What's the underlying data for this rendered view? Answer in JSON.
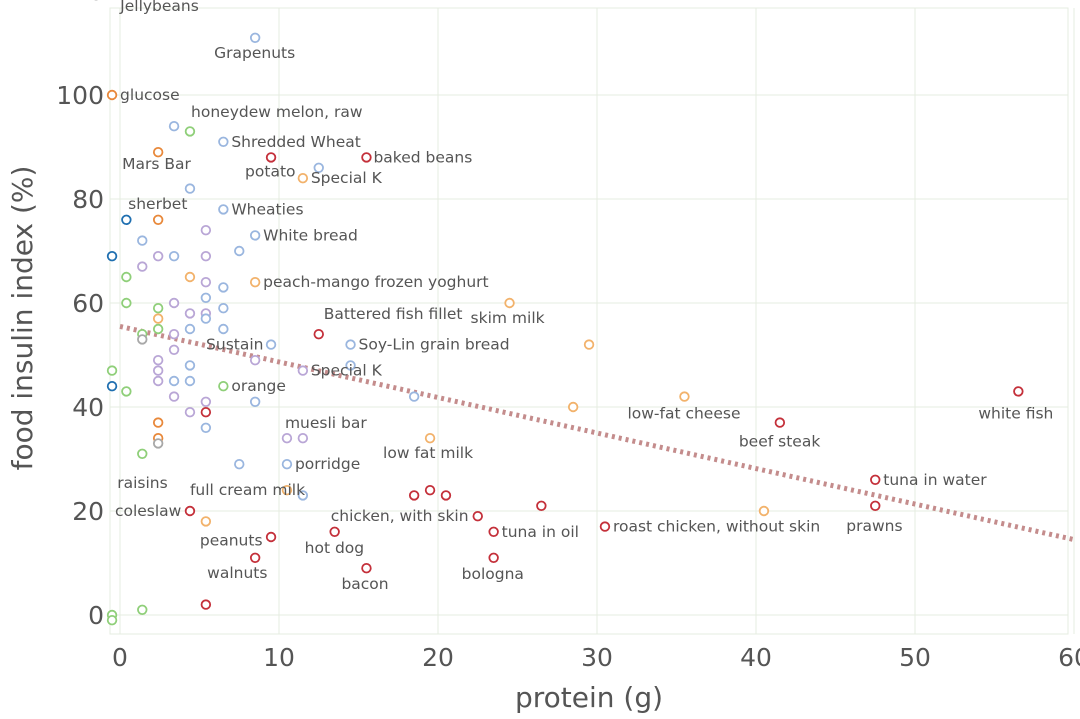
{
  "chart_data": {
    "type": "scatter",
    "xlabel": "protein (g)",
    "ylabel": "food insulin index (%)",
    "xlim": [
      0,
      60
    ],
    "ylim": [
      0,
      120
    ],
    "xticks": [
      "0",
      "10",
      "20",
      "30",
      "40",
      "50",
      "60"
    ],
    "yticks": [
      "0",
      "20",
      "40",
      "60",
      "80",
      "100",
      "120"
    ],
    "grid": true,
    "trendline": {
      "from": [
        0,
        55.5
      ],
      "to": [
        60,
        14.5
      ]
    },
    "colors": {
      "orange": "#e8883a",
      "lightorange": "#f2b26b",
      "red": "#c4303a",
      "blue": "#1f6fb0",
      "lightblue": "#9ab6df",
      "green": "#8fcf79",
      "purple": "#b9a6d6",
      "grey": "#a8a8a8"
    },
    "points": [
      {
        "x": 2.4,
        "y": 120,
        "c": "orange",
        "label": "Jellybeans"
      },
      {
        "x": 8.5,
        "y": 111,
        "c": "lightblue",
        "label": "Grapenuts"
      },
      {
        "x": -0.5,
        "y": 100,
        "c": "orange",
        "label": "glucose"
      },
      {
        "x": 3.4,
        "y": 94,
        "c": "lightblue",
        "label": "honeydew melon, raw"
      },
      {
        "x": 4.4,
        "y": 93,
        "c": "green",
        "label": ""
      },
      {
        "x": 6.5,
        "y": 91,
        "c": "lightblue",
        "label": "Shredded Wheat"
      },
      {
        "x": 2.4,
        "y": 89,
        "c": "orange",
        "label": "Mars Bar"
      },
      {
        "x": 9.5,
        "y": 88,
        "c": "red",
        "label": "potato"
      },
      {
        "x": 15.5,
        "y": 88,
        "c": "red",
        "label": "baked beans"
      },
      {
        "x": 12.5,
        "y": 86,
        "c": "lightblue",
        "label": ""
      },
      {
        "x": 11.5,
        "y": 84,
        "c": "lightorange",
        "label": "Special K"
      },
      {
        "x": 4.4,
        "y": 82,
        "c": "lightblue",
        "label": ""
      },
      {
        "x": 6.5,
        "y": 78,
        "c": "lightblue",
        "label": "Wheaties"
      },
      {
        "x": 0.4,
        "y": 76,
        "c": "blue",
        "label": ""
      },
      {
        "x": 2.4,
        "y": 76,
        "c": "orange",
        "label": "sherbet"
      },
      {
        "x": 5.4,
        "y": 74,
        "c": "purple",
        "label": ""
      },
      {
        "x": 8.5,
        "y": 73,
        "c": "lightblue",
        "label": "White bread"
      },
      {
        "x": 1.4,
        "y": 72,
        "c": "lightblue",
        "label": ""
      },
      {
        "x": 7.5,
        "y": 70,
        "c": "lightblue",
        "label": ""
      },
      {
        "x": -0.5,
        "y": 69,
        "c": "blue",
        "label": ""
      },
      {
        "x": 2.4,
        "y": 69,
        "c": "purple",
        "label": ""
      },
      {
        "x": 3.4,
        "y": 69,
        "c": "lightblue",
        "label": ""
      },
      {
        "x": 5.4,
        "y": 69,
        "c": "purple",
        "label": ""
      },
      {
        "x": 1.4,
        "y": 67,
        "c": "purple",
        "label": ""
      },
      {
        "x": 0.4,
        "y": 65,
        "c": "green",
        "label": ""
      },
      {
        "x": 4.4,
        "y": 65,
        "c": "lightorange",
        "label": ""
      },
      {
        "x": 5.4,
        "y": 64,
        "c": "purple",
        "label": ""
      },
      {
        "x": 8.5,
        "y": 64,
        "c": "lightorange",
        "label": "peach-mango frozen yoghurt"
      },
      {
        "x": 6.5,
        "y": 63,
        "c": "lightblue",
        "label": ""
      },
      {
        "x": 5.4,
        "y": 61,
        "c": "lightblue",
        "label": ""
      },
      {
        "x": 0.4,
        "y": 60,
        "c": "green",
        "label": ""
      },
      {
        "x": 3.4,
        "y": 60,
        "c": "purple",
        "label": ""
      },
      {
        "x": 24.5,
        "y": 60,
        "c": "lightorange",
        "label": "skim milk"
      },
      {
        "x": 2.4,
        "y": 59,
        "c": "green",
        "label": ""
      },
      {
        "x": 6.5,
        "y": 59,
        "c": "lightblue",
        "label": ""
      },
      {
        "x": 4.4,
        "y": 58,
        "c": "purple",
        "label": ""
      },
      {
        "x": 5.4,
        "y": 58,
        "c": "purple",
        "label": ""
      },
      {
        "x": 2.4,
        "y": 57,
        "c": "lightorange",
        "label": ""
      },
      {
        "x": 5.4,
        "y": 57,
        "c": "lightblue",
        "label": ""
      },
      {
        "x": 2.4,
        "y": 55,
        "c": "green",
        "label": ""
      },
      {
        "x": 4.4,
        "y": 55,
        "c": "lightblue",
        "label": ""
      },
      {
        "x": 6.5,
        "y": 55,
        "c": "lightblue",
        "label": ""
      },
      {
        "x": 1.4,
        "y": 54,
        "c": "green",
        "label": ""
      },
      {
        "x": 3.4,
        "y": 54,
        "c": "purple",
        "label": ""
      },
      {
        "x": 12.5,
        "y": 54,
        "c": "red",
        "label": "Battered fish fillet"
      },
      {
        "x": 1.4,
        "y": 53,
        "c": "grey",
        "label": ""
      },
      {
        "x": 9.5,
        "y": 52,
        "c": "lightblue",
        "label": "Sustain"
      },
      {
        "x": 14.5,
        "y": 52,
        "c": "lightblue",
        "label": "Soy-Lin grain bread"
      },
      {
        "x": 29.5,
        "y": 52,
        "c": "lightorange",
        "label": ""
      },
      {
        "x": 3.4,
        "y": 51,
        "c": "purple",
        "label": ""
      },
      {
        "x": 2.4,
        "y": 49,
        "c": "purple",
        "label": ""
      },
      {
        "x": 8.5,
        "y": 49,
        "c": "purple",
        "label": ""
      },
      {
        "x": 4.4,
        "y": 48,
        "c": "lightblue",
        "label": ""
      },
      {
        "x": 14.5,
        "y": 48,
        "c": "lightblue",
        "label": ""
      },
      {
        "x": -0.5,
        "y": 47,
        "c": "green",
        "label": ""
      },
      {
        "x": 2.4,
        "y": 47,
        "c": "purple",
        "label": ""
      },
      {
        "x": 11.5,
        "y": 47,
        "c": "purple",
        "label": "Special K"
      },
      {
        "x": 2.4,
        "y": 45,
        "c": "purple",
        "label": ""
      },
      {
        "x": 3.4,
        "y": 45,
        "c": "lightblue",
        "label": ""
      },
      {
        "x": 4.4,
        "y": 45,
        "c": "lightblue",
        "label": ""
      },
      {
        "x": -0.5,
        "y": 44,
        "c": "blue",
        "label": ""
      },
      {
        "x": 6.5,
        "y": 44,
        "c": "green",
        "label": "orange"
      },
      {
        "x": 0.4,
        "y": 43,
        "c": "green",
        "label": ""
      },
      {
        "x": 56.5,
        "y": 43,
        "c": "red",
        "label": "white fish"
      },
      {
        "x": 3.4,
        "y": 42,
        "c": "purple",
        "label": ""
      },
      {
        "x": 18.5,
        "y": 42,
        "c": "lightblue",
        "label": ""
      },
      {
        "x": 35.5,
        "y": 42,
        "c": "lightorange",
        "label": "low-fat cheese"
      },
      {
        "x": 5.4,
        "y": 41,
        "c": "purple",
        "label": ""
      },
      {
        "x": 8.5,
        "y": 41,
        "c": "lightblue",
        "label": ""
      },
      {
        "x": 28.5,
        "y": 40,
        "c": "lightorange",
        "label": ""
      },
      {
        "x": 4.4,
        "y": 39,
        "c": "purple",
        "label": ""
      },
      {
        "x": 5.4,
        "y": 39,
        "c": "red",
        "label": ""
      },
      {
        "x": 2.4,
        "y": 37,
        "c": "orange",
        "label": ""
      },
      {
        "x": 41.5,
        "y": 37,
        "c": "red",
        "label": "beef steak"
      },
      {
        "x": 5.4,
        "y": 36,
        "c": "lightblue",
        "label": ""
      },
      {
        "x": 2.4,
        "y": 34,
        "c": "orange",
        "label": ""
      },
      {
        "x": 10.5,
        "y": 34,
        "c": "purple",
        "label": "muesli bar"
      },
      {
        "x": 11.5,
        "y": 34,
        "c": "purple",
        "label": ""
      },
      {
        "x": 19.5,
        "y": 34,
        "c": "lightorange",
        "label": "low fat milk"
      },
      {
        "x": 2.4,
        "y": 33,
        "c": "grey",
        "label": ""
      },
      {
        "x": 1.4,
        "y": 31,
        "c": "green",
        "label": "raisins"
      },
      {
        "x": 7.5,
        "y": 29,
        "c": "lightblue",
        "label": ""
      },
      {
        "x": 10.5,
        "y": 29,
        "c": "lightblue",
        "label": "porridge"
      },
      {
        "x": 47.5,
        "y": 26,
        "c": "red",
        "label": "tuna in water"
      },
      {
        "x": 10.5,
        "y": 24,
        "c": "lightorange",
        "label": "full cream milk"
      },
      {
        "x": 19.5,
        "y": 24,
        "c": "red",
        "label": ""
      },
      {
        "x": 11.5,
        "y": 23,
        "c": "lightblue",
        "label": ""
      },
      {
        "x": 18.5,
        "y": 23,
        "c": "red",
        "label": ""
      },
      {
        "x": 20.5,
        "y": 23,
        "c": "red",
        "label": ""
      },
      {
        "x": 26.5,
        "y": 21,
        "c": "red",
        "label": ""
      },
      {
        "x": 47.5,
        "y": 21,
        "c": "red",
        "label": "prawns"
      },
      {
        "x": 4.4,
        "y": 20,
        "c": "red",
        "label": "coleslaw"
      },
      {
        "x": 40.5,
        "y": 20,
        "c": "lightorange",
        "label": ""
      },
      {
        "x": 22.5,
        "y": 19,
        "c": "red",
        "label": "chicken, with skin"
      },
      {
        "x": 5.4,
        "y": 18,
        "c": "lightorange",
        "label": "peanuts"
      },
      {
        "x": 30.5,
        "y": 17,
        "c": "red",
        "label": "roast chicken, without skin"
      },
      {
        "x": 13.5,
        "y": 16,
        "c": "red",
        "label": "hot dog"
      },
      {
        "x": 23.5,
        "y": 16,
        "c": "red",
        "label": "tuna in oil"
      },
      {
        "x": 9.5,
        "y": 15,
        "c": "red",
        "label": ""
      },
      {
        "x": 8.5,
        "y": 11,
        "c": "red",
        "label": "walnuts"
      },
      {
        "x": 23.5,
        "y": 11,
        "c": "red",
        "label": "bologna"
      },
      {
        "x": 15.5,
        "y": 9,
        "c": "red",
        "label": "bacon"
      },
      {
        "x": 5.4,
        "y": 2,
        "c": "red",
        "label": ""
      },
      {
        "x": 1.4,
        "y": 1,
        "c": "green",
        "label": ""
      },
      {
        "x": -0.5,
        "y": 0,
        "c": "green",
        "label": ""
      },
      {
        "x": -0.5,
        "y": -1,
        "c": "green",
        "label": ""
      }
    ]
  }
}
